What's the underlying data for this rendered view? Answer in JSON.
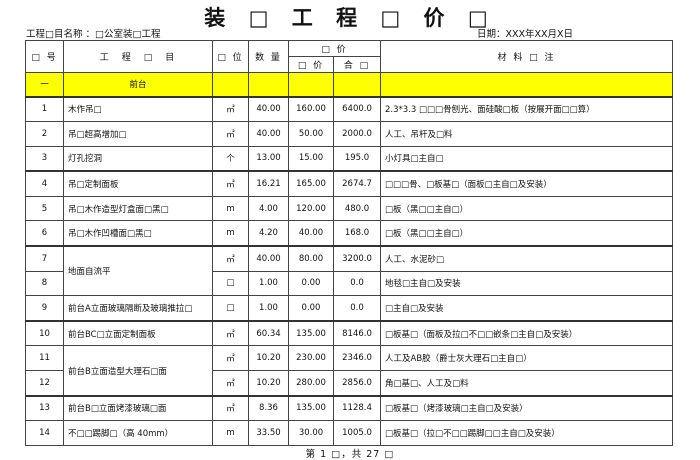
{
  "title": "装 □ 工 程 □ 价 □",
  "project_label": "工程□目名称 ：□公室装□工程",
  "date_label": "日期：XXX年XX月X日",
  "headers": {
    "num": "□ 号",
    "item": "工　程　□　目",
    "unit": "□ 位",
    "qty": "数 量",
    "price_group": "□ 价",
    "unit_price": "□ 价",
    "total": "合 □",
    "notes": "材 料 □ 注"
  },
  "section": {
    "num": "一",
    "name": "前台"
  },
  "rows": [
    {
      "num": "1",
      "item": "木作吊□",
      "unit": "㎡",
      "qty": "40.00",
      "price": "160.00",
      "total": "6400.0",
      "notes": "2.3*3.3 □□□骨刨光、面硅酸□板（按展开面□□算）"
    },
    {
      "num": "2",
      "item": "吊□超高增加□",
      "unit": "㎡",
      "qty": "40.00",
      "price": "50.00",
      "total": "2000.0",
      "notes": "人工、吊杆及□料"
    },
    {
      "num": "3",
      "item": "灯孔挖洞",
      "unit": "个",
      "qty": "13.00",
      "price": "15.00",
      "total": "195.0",
      "notes": "小灯具□主自□"
    },
    {
      "num": "4",
      "item": "吊□定制面板",
      "unit": "㎡",
      "qty": "16.21",
      "price": "165.00",
      "total": "2674.7",
      "notes": "□□□骨、□板基□（面板□主自□及安装）"
    },
    {
      "num": "5",
      "item": "吊□木作造型灯盒面□黑□",
      "unit": "m",
      "qty": "4.00",
      "price": "120.00",
      "total": "480.0",
      "notes": "□板（黑□□主自□）"
    },
    {
      "num": "6",
      "item": "吊□木作凹槽面□黑□",
      "unit": "m",
      "qty": "4.20",
      "price": "40.00",
      "total": "168.0",
      "notes": "□板（黑□□主自□）"
    },
    {
      "num": "7",
      "item": "地面自流平",
      "span": 2,
      "unit": "㎡",
      "qty": "40.00",
      "price": "80.00",
      "total": "3200.0",
      "notes": "人工、水泥砂□"
    },
    {
      "num": "8",
      "unit": "□",
      "qty": "1.00",
      "price": "0.00",
      "total": "0.0",
      "notes": "地毯□主自□及安装"
    },
    {
      "num": "9",
      "item": "前台A立面玻璃隔断及玻璃推拉□",
      "unit": "□",
      "qty": "1.00",
      "price": "0.00",
      "total": "0.0",
      "notes": "□主自□及安装"
    },
    {
      "num": "10",
      "item": "前台BC□立面定制面板",
      "unit": "㎡",
      "qty": "60.34",
      "price": "135.00",
      "total": "8146.0",
      "notes": "□板基□（面板及拉□不□□嵌条□主自□及安装）"
    },
    {
      "num": "11",
      "item": "前台B立面造型大理石□面",
      "span": 2,
      "unit": "㎡",
      "qty": "10.20",
      "price": "230.00",
      "total": "2346.0",
      "notes": "人工及AB胶（爵士灰大理石□主自□）"
    },
    {
      "num": "12",
      "unit": "㎡",
      "qty": "10.20",
      "price": "280.00",
      "total": "2856.0",
      "notes": "角□基□、人工及□料"
    },
    {
      "num": "13",
      "item": "前台B□立面烤漆玻璃□面",
      "unit": "㎡",
      "qty": "8.36",
      "price": "135.00",
      "total": "1128.4",
      "notes": "□板基□（烤漆玻璃□主自□及安装）"
    },
    {
      "num": "14",
      "item": "不□□踢脚□（高 40mm）",
      "unit": "m",
      "qty": "33.50",
      "price": "30.00",
      "total": "1005.0",
      "notes": "□板基□（拉□不□□踢脚□□主自□及安装）"
    }
  ],
  "footer": "第 1 □，共 27 □",
  "colors": {
    "section_bg": "#ffff00"
  }
}
